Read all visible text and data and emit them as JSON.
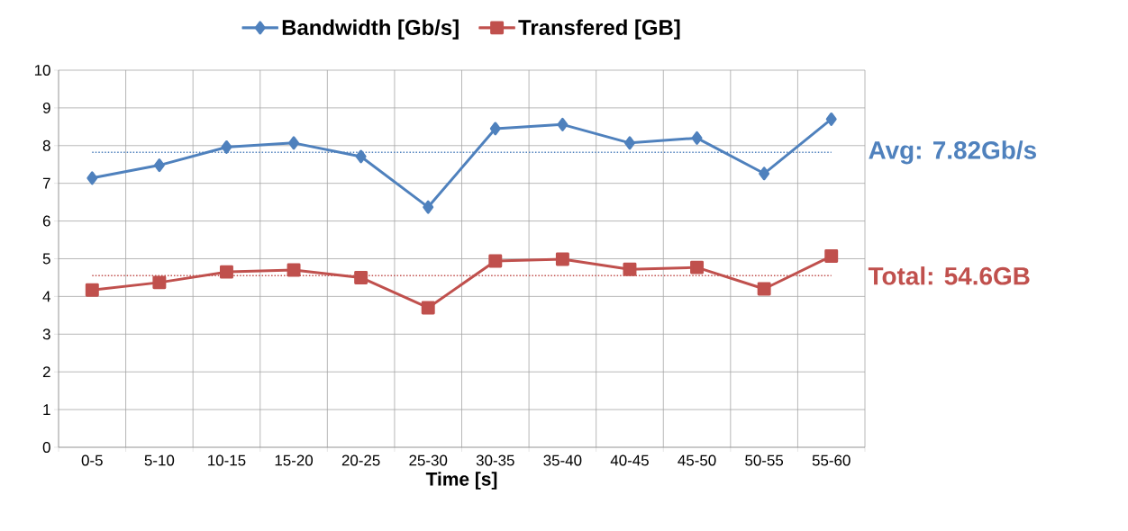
{
  "chart_data": {
    "type": "line",
    "xlabel": "Time [s]",
    "categories": [
      "0-5",
      "5-10",
      "10-15",
      "15-20",
      "20-25",
      "25-30",
      "30-35",
      "35-40",
      "40-45",
      "45-50",
      "50-55",
      "55-60"
    ],
    "series": [
      {
        "name": "Bandwidth [Gb/s]",
        "color": "#4f81bd",
        "marker": "diamond",
        "values": [
          7.14,
          7.48,
          7.96,
          8.07,
          7.71,
          6.37,
          8.45,
          8.56,
          8.07,
          8.2,
          7.26,
          8.7
        ]
      },
      {
        "name": "Transfered [GB]",
        "color": "#c0504d",
        "marker": "square",
        "values": [
          4.17,
          4.37,
          4.65,
          4.7,
          4.5,
          3.7,
          4.94,
          4.99,
          4.72,
          4.77,
          4.2,
          5.07
        ]
      }
    ],
    "ylim": [
      0,
      10
    ],
    "yticks": [
      0,
      1,
      2,
      3,
      4,
      5,
      6,
      7,
      8,
      9,
      10
    ],
    "grid": true,
    "legend": "top",
    "line_style": "solid",
    "ref_lines": [
      {
        "axis": "y",
        "value": 7.82,
        "label": "Avg: 7.82Gb/s",
        "color": "#4f81bd",
        "line_style": "dotted"
      },
      {
        "axis": "y",
        "value": 4.55,
        "color": "#c0504d",
        "line_style": "dotted"
      }
    ],
    "annotations": [
      "Total: 54.6GB"
    ]
  }
}
